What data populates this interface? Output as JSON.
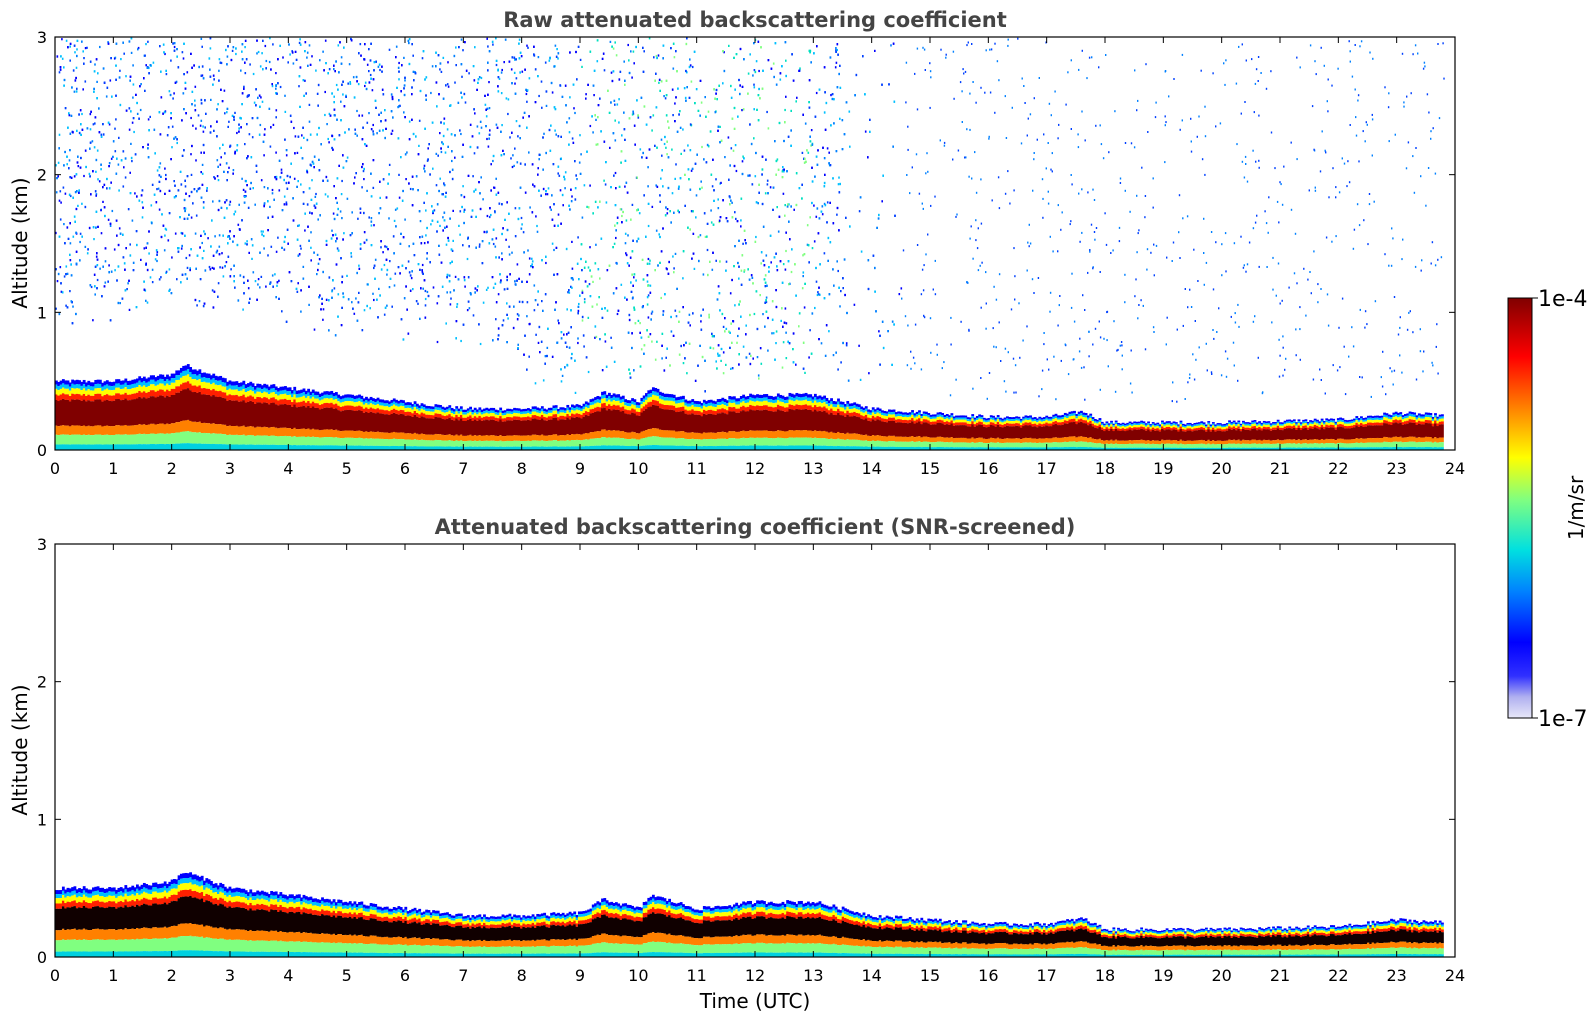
{
  "chart_data": [
    {
      "type": "heatmap",
      "title": "Raw attenuated backscattering coefficient",
      "xlabel": "",
      "ylabel": "Altitude (km)",
      "xlim": [
        0,
        24
      ],
      "ylim": [
        0,
        3
      ],
      "x_ticks": [
        "0",
        "1",
        "2",
        "3",
        "4",
        "5",
        "6",
        "7",
        "8",
        "9",
        "10",
        "11",
        "12",
        "13",
        "14",
        "15",
        "16",
        "17",
        "18",
        "19",
        "20",
        "21",
        "22",
        "23",
        "24"
      ],
      "y_ticks": [
        "0",
        "1",
        "2",
        "3"
      ],
      "data_end_hour": 23.8,
      "layer_top_km": [
        {
          "t": 0,
          "h": 0.5
        },
        {
          "t": 1,
          "h": 0.5
        },
        {
          "t": 2,
          "h": 0.55
        },
        {
          "t": 2.2,
          "h": 0.62
        },
        {
          "t": 3,
          "h": 0.5
        },
        {
          "t": 4,
          "h": 0.45
        },
        {
          "t": 5,
          "h": 0.4
        },
        {
          "t": 6,
          "h": 0.35
        },
        {
          "t": 7,
          "h": 0.3
        },
        {
          "t": 8,
          "h": 0.3
        },
        {
          "t": 9,
          "h": 0.32
        },
        {
          "t": 9.4,
          "h": 0.42
        },
        {
          "t": 10,
          "h": 0.35
        },
        {
          "t": 10.2,
          "h": 0.45
        },
        {
          "t": 11,
          "h": 0.35
        },
        {
          "t": 12,
          "h": 0.4
        },
        {
          "t": 13,
          "h": 0.4
        },
        {
          "t": 14,
          "h": 0.3
        },
        {
          "t": 15,
          "h": 0.27
        },
        {
          "t": 16,
          "h": 0.24
        },
        {
          "t": 17,
          "h": 0.24
        },
        {
          "t": 17.6,
          "h": 0.28
        },
        {
          "t": 18,
          "h": 0.2
        },
        {
          "t": 20,
          "h": 0.2
        },
        {
          "t": 22,
          "h": 0.22
        },
        {
          "t": 23,
          "h": 0.27
        },
        {
          "t": 23.8,
          "h": 0.25
        }
      ],
      "noise_region_hours": [
        0,
        14.5
      ],
      "noise_sparse_hours": [
        14.5,
        23.8
      ]
    },
    {
      "type": "heatmap",
      "title": "Attenuated backscattering coefficient (SNR-screened)",
      "xlabel": "Time (UTC)",
      "ylabel": "Altitude (km)",
      "xlim": [
        0,
        24
      ],
      "ylim": [
        0,
        3
      ],
      "x_ticks": [
        "0",
        "1",
        "2",
        "3",
        "4",
        "5",
        "6",
        "7",
        "8",
        "9",
        "10",
        "11",
        "12",
        "13",
        "14",
        "15",
        "16",
        "17",
        "18",
        "19",
        "20",
        "21",
        "22",
        "23",
        "24"
      ],
      "y_ticks": [
        "0",
        "1",
        "2",
        "3"
      ],
      "data_end_hour": 23.8
    }
  ],
  "colorbar": {
    "label": "1/m/sr",
    "max_label": "1e-4",
    "min_label": "1e-7",
    "scale": "log",
    "colors": [
      "#e8e8f8",
      "#b0b0f0",
      "#0000ff",
      "#00a0ff",
      "#00e0e0",
      "#80ff80",
      "#ffff00",
      "#ff8000",
      "#ff0000",
      "#800000"
    ]
  }
}
